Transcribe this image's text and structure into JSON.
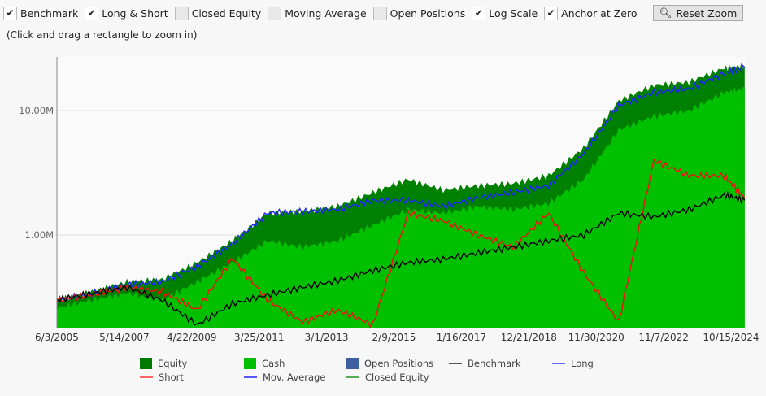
{
  "toolbar": {
    "checkboxes": [
      {
        "label": "Benchmark",
        "checked": true
      },
      {
        "label": "Long & Short",
        "checked": true
      },
      {
        "label": "Closed Equity",
        "checked": false
      },
      {
        "label": "Moving Average",
        "checked": false
      },
      {
        "label": "Open Positions",
        "checked": false
      },
      {
        "label": "Log Scale",
        "checked": true
      },
      {
        "label": "Anchor at Zero",
        "checked": true
      }
    ],
    "reset_label": "Reset Zoom",
    "reset_icon": "zoom-out-icon"
  },
  "hint": "(Click and drag a rectangle to zoom in)",
  "chart_data": {
    "type": "area",
    "yscale": "log",
    "ylim": [
      180000,
      27000000
    ],
    "yticks": [
      {
        "value": 1000000,
        "label": "1.00M"
      },
      {
        "value": 10000000,
        "label": "10.00M"
      }
    ],
    "xlim": [
      "2005-06-03",
      "2025-01-20"
    ],
    "xticks": [
      "6/3/2005",
      "5/14/2007",
      "4/22/2009",
      "3/25/2011",
      "3/1/2013",
      "2/9/2015",
      "1/16/2017",
      "12/21/2018",
      "11/30/2020",
      "11/7/2022",
      "10/15/2024"
    ],
    "x": [
      "2005-06",
      "2006-06",
      "2007-06",
      "2008-06",
      "2009-06",
      "2010-06",
      "2011-06",
      "2012-06",
      "2013-06",
      "2014-06",
      "2015-06",
      "2016-06",
      "2017-06",
      "2018-06",
      "2019-06",
      "2020-06",
      "2021-06",
      "2022-06",
      "2023-06",
      "2024-06",
      "2025-01"
    ],
    "series": [
      {
        "name": "Equity",
        "kind": "area",
        "color": "#008000",
        "values": [
          300000,
          350000,
          420000,
          440000,
          600000,
          900000,
          1500000,
          1550000,
          1700000,
          2200000,
          2800000,
          2300000,
          2500000,
          2600000,
          3000000,
          5000000,
          12000000,
          16000000,
          17000000,
          22000000,
          23000000
        ]
      },
      {
        "name": "Cash",
        "kind": "area",
        "color": "#00c000",
        "values": [
          260000,
          300000,
          340000,
          300000,
          420000,
          600000,
          900000,
          800000,
          900000,
          1200000,
          1600000,
          1500000,
          1700000,
          1600000,
          1800000,
          2800000,
          7000000,
          9000000,
          10000000,
          14000000,
          15000000
        ]
      },
      {
        "name": "Long",
        "kind": "line",
        "color": "#2222ff",
        "values": [
          300000,
          340000,
          400000,
          420000,
          560000,
          850000,
          1500000,
          1550000,
          1600000,
          1900000,
          1900000,
          1700000,
          2000000,
          2200000,
          2500000,
          4500000,
          11000000,
          14000000,
          15000000,
          20000000,
          22000000
        ]
      },
      {
        "name": "Short",
        "kind": "line",
        "color": "#ee1111",
        "values": [
          300000,
          330000,
          380000,
          350000,
          250000,
          650000,
          300000,
          200000,
          250000,
          190000,
          1500000,
          1300000,
          1000000,
          800000,
          1500000,
          500000,
          200000,
          4000000,
          3000000,
          3000000,
          2000000
        ]
      },
      {
        "name": "Benchmark",
        "kind": "line",
        "color": "#000000",
        "values": [
          300000,
          340000,
          380000,
          300000,
          190000,
          280000,
          330000,
          380000,
          430000,
          520000,
          600000,
          640000,
          720000,
          800000,
          900000,
          1000000,
          1500000,
          1400000,
          1600000,
          2100000,
          1900000
        ]
      }
    ],
    "legend": [
      {
        "name": "Equity",
        "type": "box",
        "color": "#007a00"
      },
      {
        "name": "Cash",
        "type": "box",
        "color": "#00c000"
      },
      {
        "name": "Open Positions",
        "type": "box",
        "color": "#3f5f9f"
      },
      {
        "name": "Benchmark",
        "type": "line",
        "color": "#555555"
      },
      {
        "name": "Long",
        "type": "line",
        "color": "#6666ff"
      },
      {
        "name": "Short",
        "type": "line",
        "color": "#ff6666"
      },
      {
        "name": "Mov. Average",
        "type": "line",
        "color": "#5555ff"
      },
      {
        "name": "Closed Equity",
        "type": "line",
        "color": "#55aa55"
      }
    ]
  }
}
